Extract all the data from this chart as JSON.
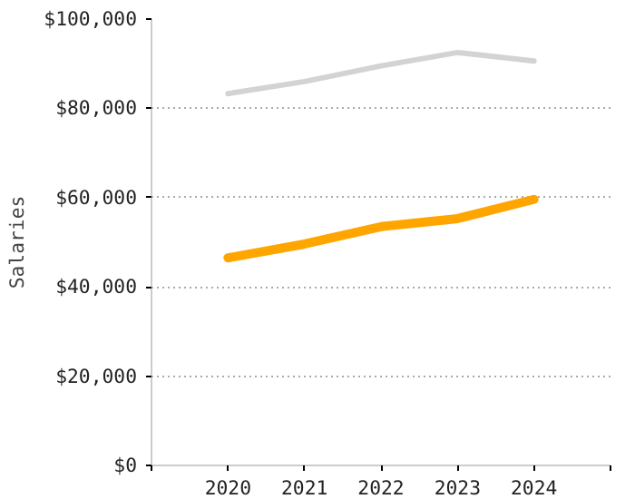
{
  "chart_data": {
    "type": "line",
    "ylabel": "Salaries",
    "x": [
      2020,
      2021,
      2022,
      2023,
      2024
    ],
    "series": [
      {
        "color": "#d3d3d3",
        "values": [
          83300,
          86000,
          89500,
          92500,
          90600
        ]
      },
      {
        "color": "#ffa500",
        "values": [
          46500,
          49600,
          53500,
          55300,
          59600
        ]
      }
    ],
    "xlim": [
      2019,
      2025
    ],
    "xticks": [
      {
        "value": 2019,
        "label": null
      },
      2020,
      2021,
      2022,
      2023,
      2024,
      {
        "value": 2025,
        "label": null
      }
    ],
    "ylim": [
      0,
      100000
    ],
    "yticks": [
      {
        "value": 0,
        "label": "$0"
      },
      {
        "value": 20000,
        "label": "$20,000"
      },
      {
        "value": 40000,
        "label": "$40,000"
      },
      {
        "value": 60000,
        "label": "$60,000"
      },
      {
        "value": 80000,
        "label": "$80,000"
      },
      {
        "value": 100000,
        "label": "$100,000"
      }
    ],
    "grid": "y",
    "line_style": "solid",
    "marker": "none"
  }
}
